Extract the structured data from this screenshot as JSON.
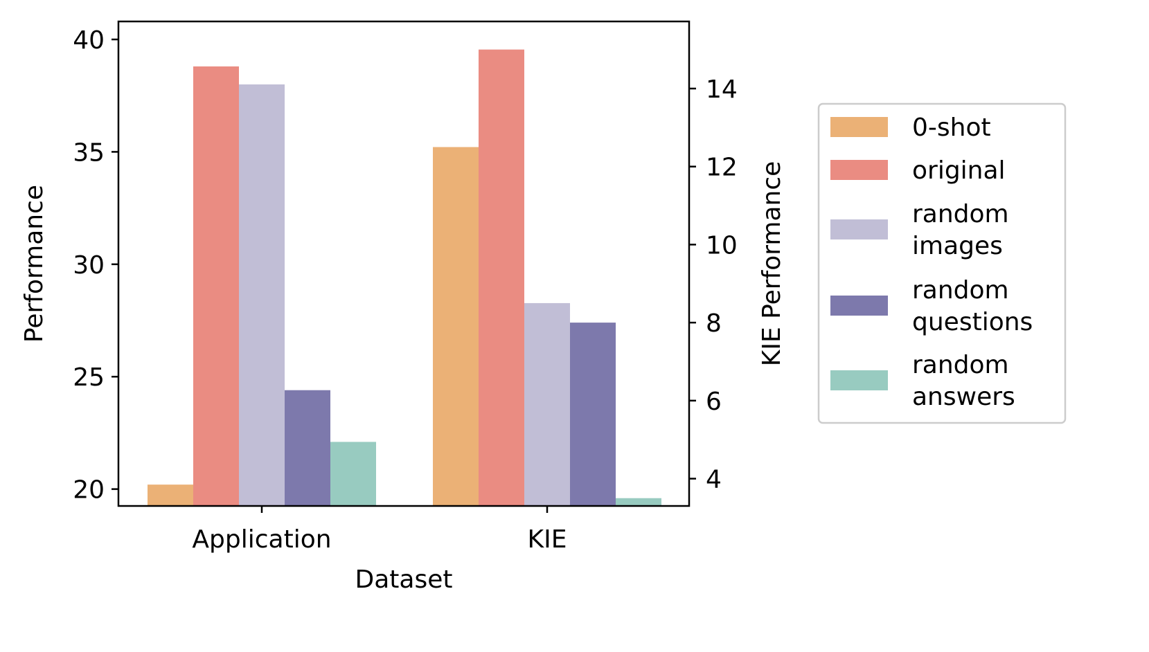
{
  "chart_data": {
    "type": "bar",
    "categories": [
      "Application",
      "KIE"
    ],
    "xlabel": "Dataset",
    "ylabel": "Performance",
    "y2label": "KIE Performance",
    "ylim": [
      19.25,
      40.8
    ],
    "y2lim": [
      3.3,
      15.72
    ],
    "yticks": [
      20,
      25,
      30,
      35,
      40
    ],
    "y2ticks": [
      4,
      6,
      8,
      10,
      12,
      14
    ],
    "series": [
      {
        "name": "0-shot",
        "color": "#ebb176",
        "values": [
          20.2,
          12.5
        ],
        "axis": [
          "left",
          "right"
        ]
      },
      {
        "name": "original",
        "color": "#ea8c82",
        "values": [
          38.8,
          15.0
        ],
        "axis": [
          "left",
          "right"
        ]
      },
      {
        "name": "random images",
        "color": "#c1bed6",
        "values": [
          38.0,
          8.5
        ],
        "axis": [
          "left",
          "right"
        ]
      },
      {
        "name": "random questions",
        "color": "#7d79ac",
        "values": [
          24.4,
          8.0
        ],
        "axis": [
          "left",
          "right"
        ]
      },
      {
        "name": "random answers",
        "color": "#98cbc0",
        "values": [
          22.1,
          3.5
        ],
        "axis": [
          "left",
          "right"
        ]
      }
    ],
    "legend": {
      "position": "right",
      "entries": [
        [
          "0-shot"
        ],
        [
          "original"
        ],
        [
          "random",
          "images"
        ],
        [
          "random",
          "questions"
        ],
        [
          "random",
          "answers"
        ]
      ]
    },
    "grid": false
  }
}
